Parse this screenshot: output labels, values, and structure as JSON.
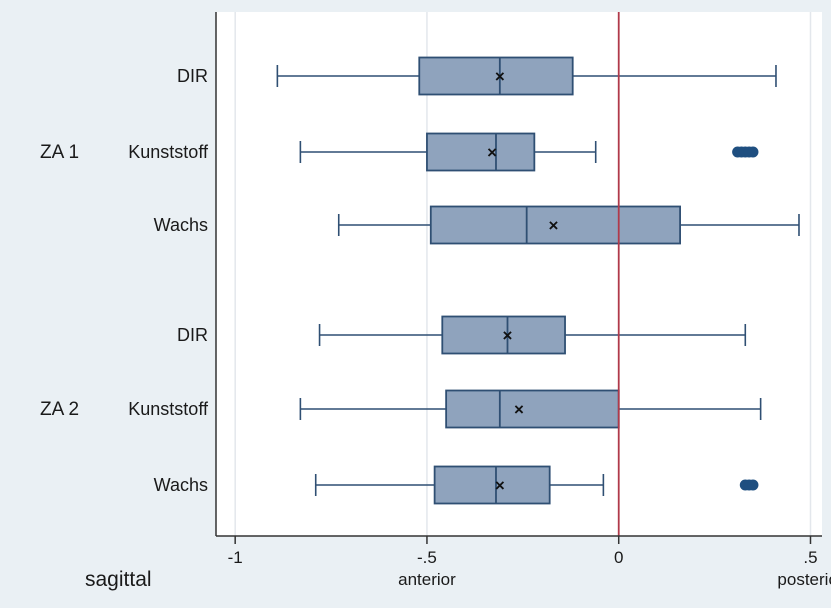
{
  "chart_data": {
    "type": "boxplot",
    "orientation": "horizontal",
    "xlim": [
      -1.05,
      0.53
    ],
    "xticks": [
      -1,
      -0.5,
      0,
      0.5
    ],
    "xtick_labels": [
      "-1",
      "-.5",
      "0",
      ".5"
    ],
    "axis_title": "sagittal",
    "direction_labels": {
      "negative": "anterior",
      "positive": "posterior"
    },
    "reference_line": 0,
    "grid": "vertical",
    "colors": {
      "box_fill": "#8fa3bd",
      "box_stroke": "#2f4f73",
      "outlier": "#1f4f80",
      "reference_line": "#b0394a",
      "plot_bg": "#ffffff",
      "page_bg": "#eaf0f4",
      "grid": "#e3e7ec"
    },
    "groups": [
      {
        "name": "ZA 1",
        "boxes": [
          {
            "label": "DIR",
            "whisker_low": -0.89,
            "q1": -0.52,
            "median": -0.31,
            "q3": -0.12,
            "whisker_high": 0.41,
            "mean": -0.31,
            "outliers": []
          },
          {
            "label": "Kunststoff",
            "whisker_low": -0.83,
            "q1": -0.5,
            "median": -0.32,
            "q3": -0.22,
            "whisker_high": -0.06,
            "mean": -0.33,
            "outliers": [
              0.31,
              0.32,
              0.33,
              0.34,
              0.35
            ]
          },
          {
            "label": "Wachs",
            "whisker_low": -0.73,
            "q1": -0.49,
            "median": -0.24,
            "q3": 0.16,
            "whisker_high": 0.47,
            "mean": -0.17,
            "outliers": []
          }
        ]
      },
      {
        "name": "ZA 2",
        "boxes": [
          {
            "label": "DIR",
            "whisker_low": -0.78,
            "q1": -0.46,
            "median": -0.29,
            "q3": -0.14,
            "whisker_high": 0.33,
            "mean": -0.29,
            "outliers": []
          },
          {
            "label": "Kunststoff",
            "whisker_low": -0.83,
            "q1": -0.45,
            "median": -0.31,
            "q3": 0.0,
            "whisker_high": 0.37,
            "mean": -0.26,
            "outliers": []
          },
          {
            "label": "Wachs",
            "whisker_low": -0.79,
            "q1": -0.48,
            "median": -0.32,
            "q3": -0.18,
            "whisker_high": -0.04,
            "mean": -0.31,
            "outliers": [
              0.33,
              0.34,
              0.35
            ]
          }
        ]
      }
    ]
  }
}
